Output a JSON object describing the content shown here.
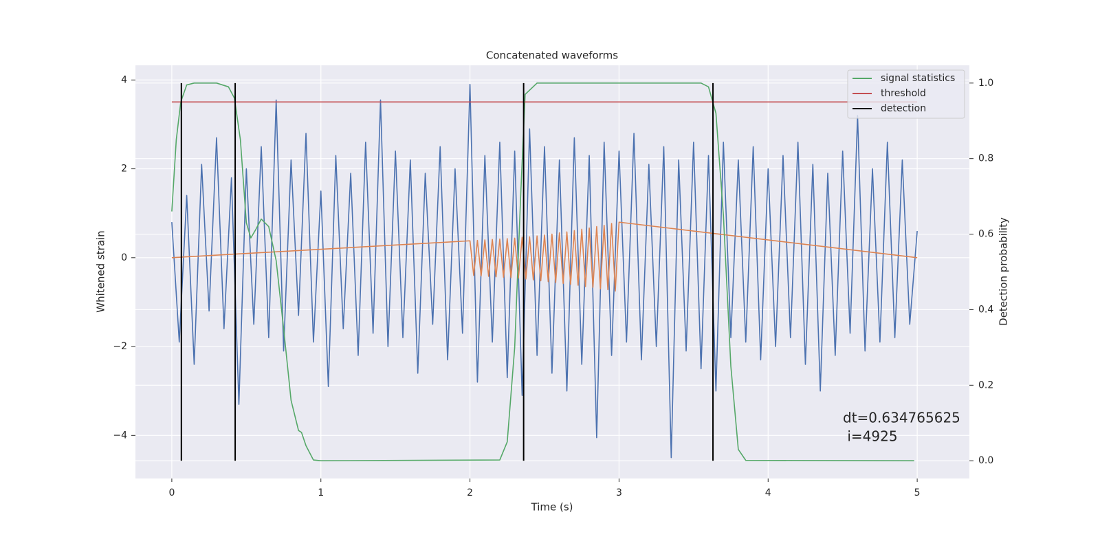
{
  "chart_data": {
    "type": "line",
    "title": "Concatenated waveforms",
    "xlabel": "Time (s)",
    "ylabel": "Whitened strain",
    "y2label": "Detection probability",
    "xlim": [
      -0.244,
      5.35
    ],
    "ylim": [
      -4.97,
      4.33
    ],
    "y2lim": [
      -0.047,
      1.047
    ],
    "xticks": [
      0,
      1,
      2,
      3,
      4,
      5
    ],
    "yticks": [
      {
        "value": -4,
        "label": "−4"
      },
      {
        "value": -2,
        "label": "−2"
      },
      0,
      2,
      4
    ],
    "y2ticks": [
      {
        "value": 0,
        "label": "0.0"
      },
      0.2,
      0.4,
      0.6,
      0.8,
      {
        "value": 1,
        "label": "1.0"
      }
    ],
    "grid": true,
    "legend_position": "upper right",
    "annotation": [
      "dt=0.634765625",
      " i=4925"
    ],
    "series": [
      {
        "color": "#4c72b0",
        "axis": "y",
        "x": [
          0,
          0.05,
          0.1,
          0.15,
          0.2,
          0.25,
          0.3,
          0.35,
          0.4,
          0.45,
          0.5,
          0.55,
          0.6,
          0.65,
          0.7,
          0.75,
          0.8,
          0.85,
          0.9,
          0.95,
          1,
          1.05,
          1.1,
          1.15,
          1.2,
          1.25,
          1.3,
          1.35,
          1.4,
          1.45,
          1.5,
          1.55,
          1.6,
          1.65,
          1.7,
          1.75,
          1.8,
          1.85,
          1.9,
          1.95,
          2,
          2.05,
          2.1,
          2.15,
          2.2,
          2.25,
          2.3,
          2.35,
          2.4,
          2.45,
          2.5,
          2.55,
          2.6,
          2.65,
          2.7,
          2.75,
          2.8,
          2.85,
          2.9,
          2.95,
          3,
          3.05,
          3.1,
          3.15,
          3.2,
          3.25,
          3.3,
          3.35,
          3.4,
          3.45,
          3.5,
          3.55,
          3.6,
          3.65,
          3.7,
          3.75,
          3.8,
          3.85,
          3.9,
          3.95,
          4,
          4.05,
          4.1,
          4.15,
          4.2,
          4.25,
          4.3,
          4.35,
          4.4,
          4.45,
          4.5,
          4.55,
          4.6,
          4.65,
          4.7,
          4.75,
          4.8,
          4.85,
          4.9,
          4.95,
          5
        ],
        "values": [
          0.8,
          -1.9,
          1.4,
          -2.4,
          2.1,
          -1.2,
          2.7,
          -1.6,
          1.8,
          -3.3,
          2.0,
          -1.5,
          2.5,
          -1.8,
          3.55,
          -2.1,
          2.2,
          -1.3,
          2.8,
          -1.9,
          1.5,
          -2.9,
          2.3,
          -1.6,
          1.9,
          -2.2,
          2.6,
          -1.7,
          3.55,
          -2.0,
          2.4,
          -1.8,
          2.2,
          -2.6,
          1.9,
          -1.5,
          2.5,
          -2.3,
          2.0,
          -1.7,
          3.9,
          -2.8,
          2.3,
          -1.9,
          2.6,
          -2.7,
          2.4,
          -3.1,
          2.9,
          -2.2,
          2.5,
          -2.6,
          2.2,
          -3.0,
          2.7,
          -2.4,
          2.3,
          -4.05,
          2.6,
          -2.2,
          2.4,
          -1.9,
          2.8,
          -2.3,
          2.1,
          -2.0,
          2.5,
          -4.5,
          2.2,
          -2.1,
          2.6,
          -2.5,
          2.3,
          -3.0,
          2.6,
          -1.8,
          2.2,
          -1.9,
          2.5,
          -2.3,
          2.0,
          -2.0,
          2.3,
          -1.8,
          2.6,
          -2.4,
          2.1,
          -3.0,
          1.9,
          -2.2,
          2.4,
          -1.7,
          3.2,
          -2.1,
          2.0,
          -1.9,
          2.6,
          -1.8,
          2.2,
          -1.5,
          0.6
        ]
      },
      {
        "color": "#dd8452",
        "axis": "y",
        "x": [
          0,
          2,
          2.025,
          2.05,
          2.075,
          2.1,
          2.125,
          2.15,
          2.175,
          2.2,
          2.225,
          2.25,
          2.275,
          2.3,
          2.325,
          2.35,
          2.375,
          2.4,
          2.425,
          2.45,
          2.475,
          2.5,
          2.525,
          2.55,
          2.575,
          2.6,
          2.625,
          2.65,
          2.675,
          2.7,
          2.725,
          2.75,
          2.775,
          2.8,
          2.825,
          2.85,
          2.875,
          2.9,
          2.925,
          2.95,
          2.975,
          3,
          5
        ],
        "values": [
          0,
          0.38,
          -0.4,
          0.39,
          -0.41,
          0.4,
          -0.42,
          0.41,
          -0.43,
          0.42,
          -0.44,
          0.43,
          -0.45,
          0.44,
          -0.46,
          0.46,
          -0.48,
          0.47,
          -0.5,
          0.49,
          -0.52,
          0.51,
          -0.54,
          0.53,
          -0.56,
          0.56,
          -0.58,
          0.58,
          -0.6,
          0.61,
          -0.62,
          0.64,
          -0.65,
          0.67,
          -0.67,
          0.7,
          -0.7,
          0.73,
          -0.72,
          0.77,
          -0.75,
          0.8,
          0
        ]
      },
      {
        "name": "signal statistics",
        "color": "#55a868",
        "axis": "y2",
        "x": [
          0,
          0.03,
          0.06,
          0.1,
          0.15,
          0.3,
          0.38,
          0.42,
          0.46,
          0.5,
          0.53,
          0.56,
          0.6,
          0.65,
          0.7,
          0.75,
          0.8,
          0.85,
          0.87,
          0.9,
          0.95,
          1,
          2.2,
          2.25,
          2.3,
          2.34,
          2.37,
          2.45,
          3.55,
          3.6,
          3.65,
          3.7,
          3.75,
          3.8,
          3.85,
          4.98
        ],
        "values": [
          0.66,
          0.85,
          0.95,
          0.995,
          1.0,
          1.0,
          0.99,
          0.96,
          0.85,
          0.63,
          0.59,
          0.61,
          0.64,
          0.62,
          0.53,
          0.35,
          0.16,
          0.08,
          0.075,
          0.04,
          0.002,
          0,
          0.002,
          0.05,
          0.3,
          0.7,
          0.97,
          1.0,
          1.0,
          0.99,
          0.92,
          0.65,
          0.25,
          0.03,
          0.001,
          0
        ]
      },
      {
        "name": "threshold",
        "color": "#c44e52",
        "axis": "y2",
        "x": [
          0,
          5
        ],
        "values": [
          0.95,
          0.95
        ]
      }
    ],
    "detection": {
      "name": "detection",
      "color": "#000000",
      "x": [
        0.064,
        0.425,
        2.36,
        3.63
      ]
    }
  }
}
